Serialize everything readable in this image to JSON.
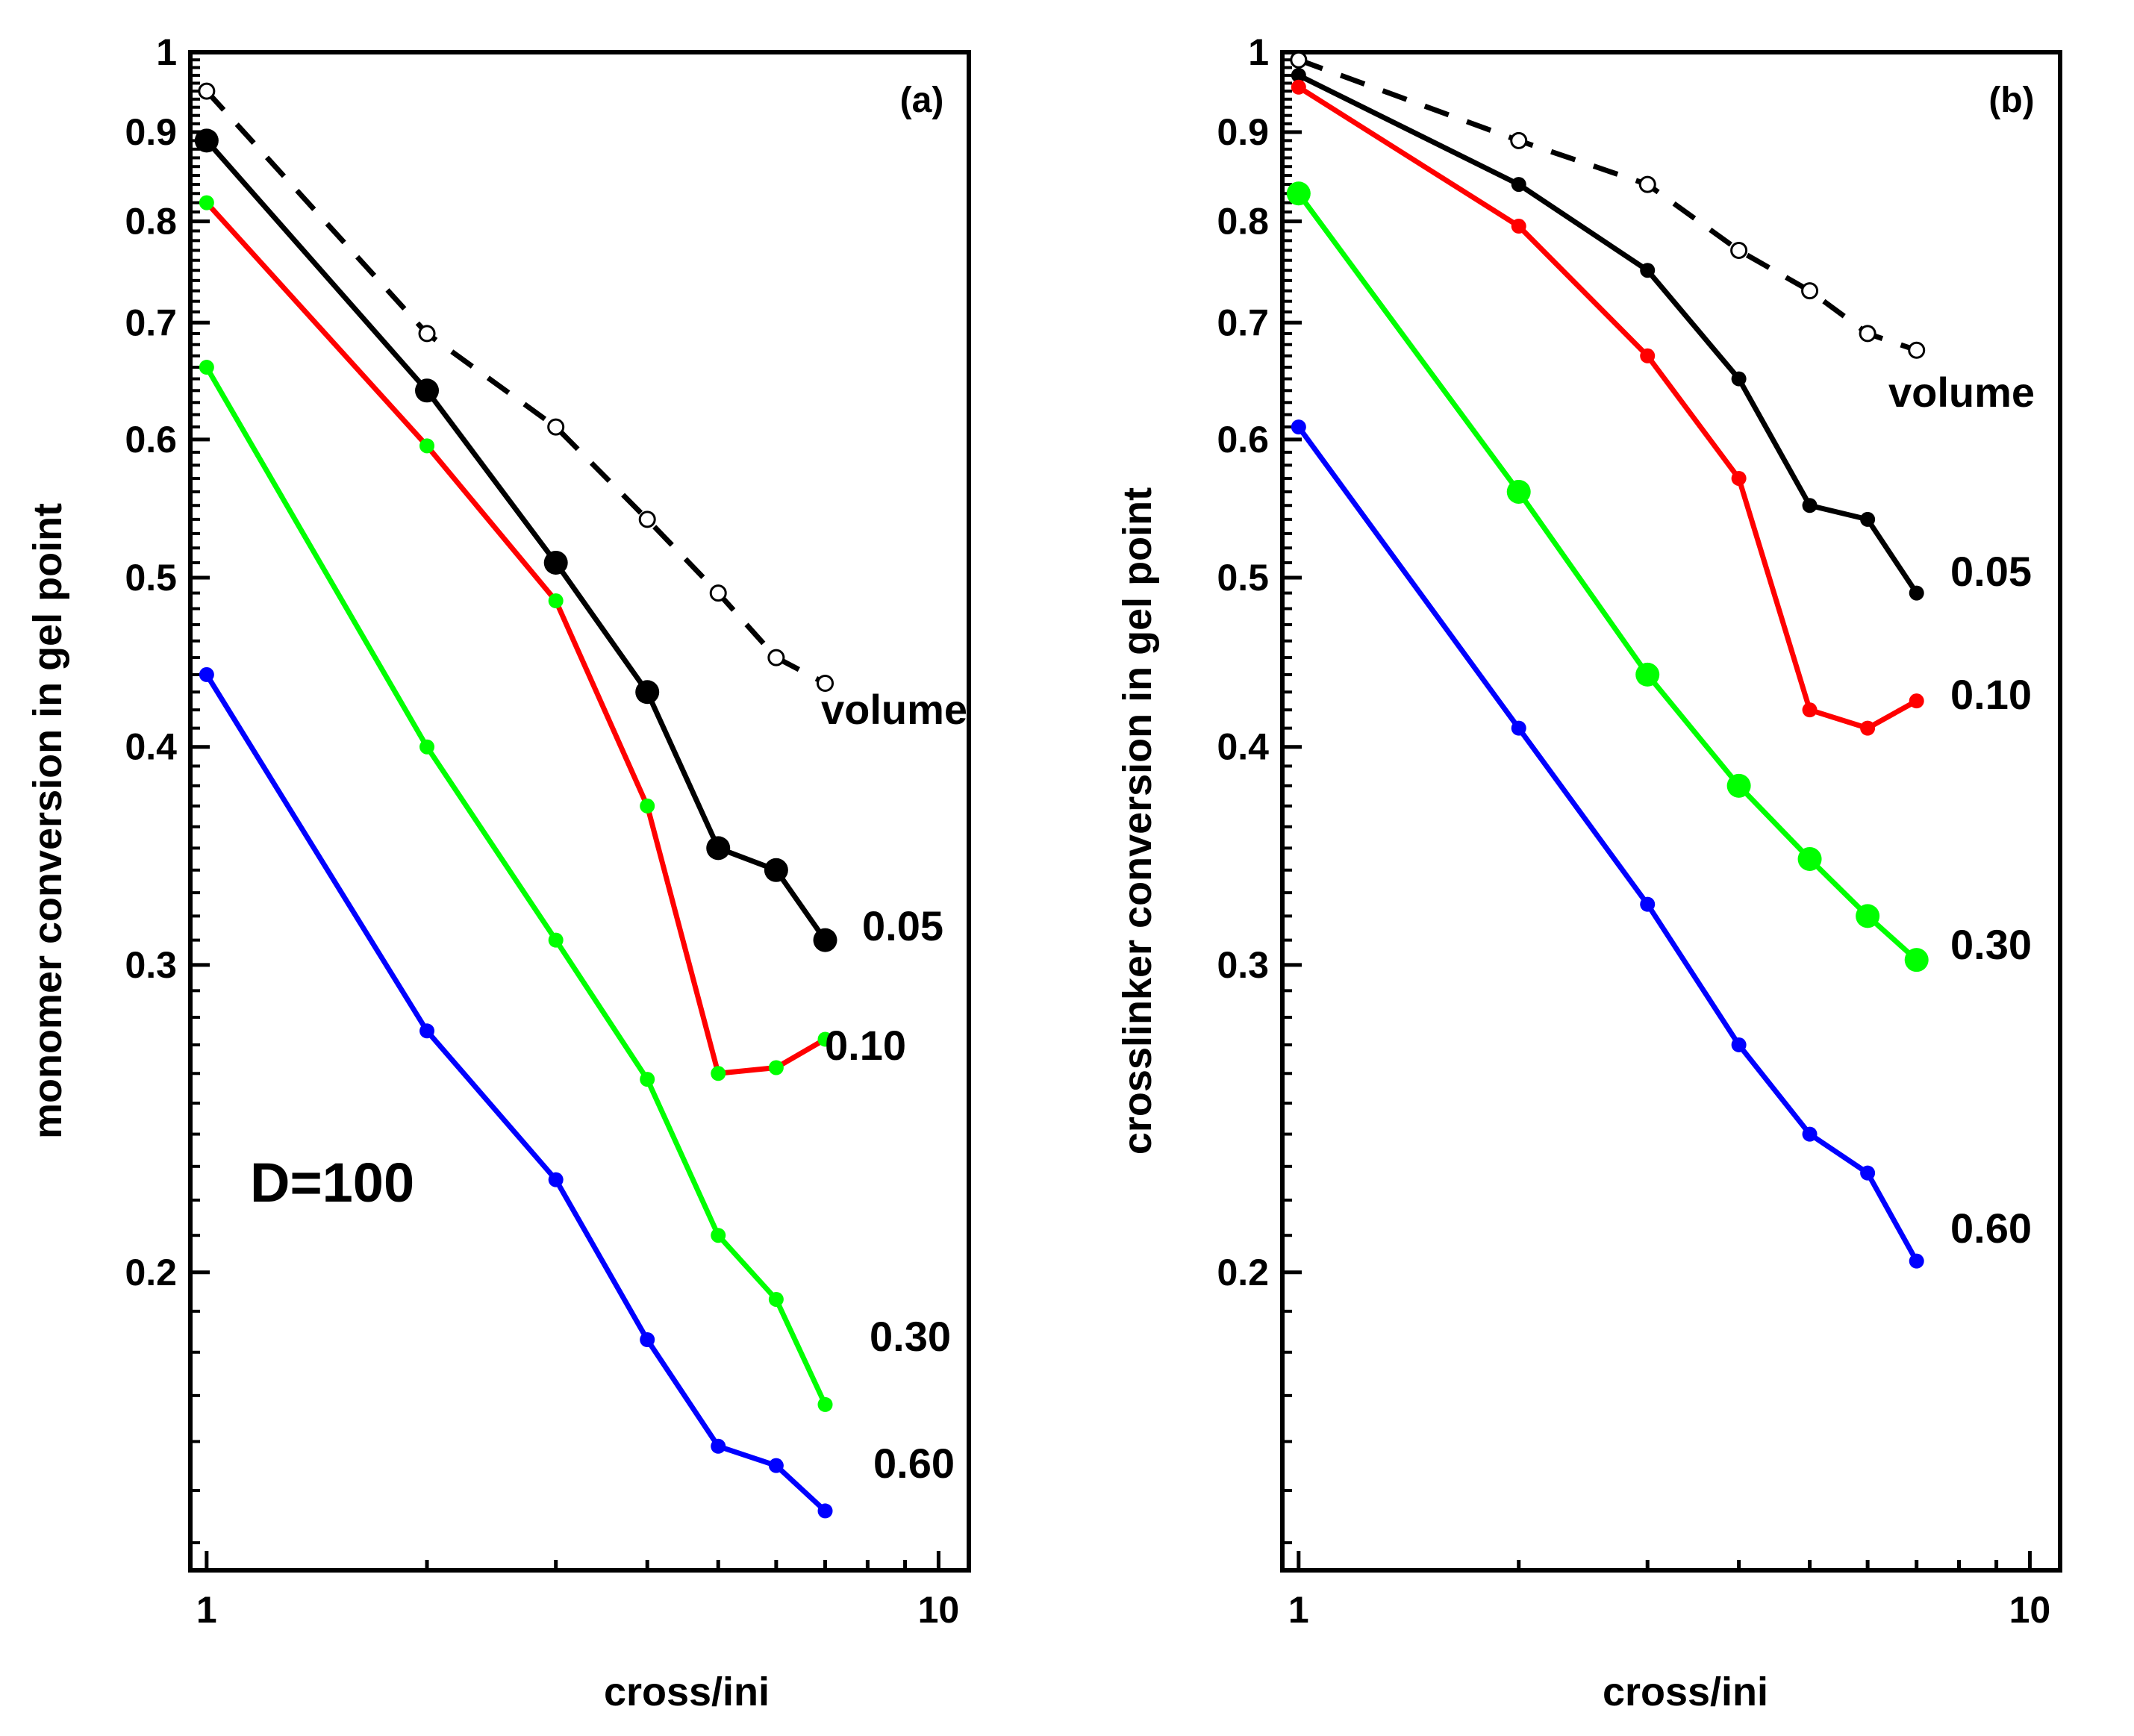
{
  "chart_data": [
    {
      "type": "line",
      "panel_label": "(a)",
      "xlabel": "cross/ini",
      "ylabel": "monomer conversion in gel point",
      "xscale": "log",
      "yscale": "log",
      "xlim": [
        0.95,
        11
      ],
      "ylim": [
        0.135,
        1.0
      ],
      "x_ticks": [
        "1",
        "10"
      ],
      "y_ticks": [
        "0.2",
        "0.3",
        "0.4",
        "0.5",
        "0.6",
        "0.7",
        "0.8",
        "0.9",
        "1"
      ],
      "annotation": "D=100",
      "x": [
        1,
        2,
        3,
        4,
        5,
        6,
        7
      ],
      "series": [
        {
          "name": "volume",
          "label": "volume",
          "color": "#000000",
          "style": "dashed",
          "marker": "open",
          "marker_size": "small",
          "values": [
            0.95,
            0.69,
            0.61,
            0.54,
            0.49,
            0.45,
            0.435
          ]
        },
        {
          "name": "0.05",
          "label": "0.05",
          "color": "#000000",
          "style": "solid",
          "marker": "filled",
          "marker_size": "large",
          "values": [
            0.89,
            0.64,
            0.51,
            0.43,
            0.35,
            0.34,
            0.31
          ]
        },
        {
          "name": "0.10",
          "label": "0.10",
          "color": "#ff0000",
          "style": "solid",
          "marker": "filled",
          "marker_color": "#00ff00",
          "marker_size": "small",
          "values": [
            0.82,
            0.595,
            0.485,
            0.37,
            0.26,
            0.262,
            0.272
          ]
        },
        {
          "name": "0.30",
          "label": "0.30",
          "color": "#00ff00",
          "style": "solid",
          "marker": "filled",
          "marker_size": "small",
          "values": [
            0.66,
            0.4,
            0.31,
            0.258,
            0.21,
            0.193,
            0.168
          ]
        },
        {
          "name": "0.60",
          "label": "0.60",
          "color": "#0000ff",
          "style": "solid",
          "marker": "filled",
          "marker_size": "small",
          "values": [
            0.44,
            0.275,
            0.226,
            0.183,
            0.159,
            0.155,
            0.146
          ]
        }
      ]
    },
    {
      "type": "line",
      "panel_label": "(b)",
      "xlabel": "cross/ini",
      "ylabel": "crosslinker conversion in gel point",
      "xscale": "log",
      "yscale": "log",
      "xlim": [
        0.95,
        11
      ],
      "ylim": [
        0.135,
        1.0
      ],
      "x_ticks": [
        "1",
        "10"
      ],
      "y_ticks": [
        "0.2",
        "0.3",
        "0.4",
        "0.5",
        "0.6",
        "0.7",
        "0.8",
        "0.9",
        "1"
      ],
      "x": [
        1,
        2,
        3,
        4,
        5,
        6,
        7
      ],
      "series": [
        {
          "name": "volume",
          "label": "volume",
          "color": "#000000",
          "style": "dashed",
          "marker": "open",
          "marker_size": "small",
          "values": [
            0.99,
            0.89,
            0.84,
            0.77,
            0.73,
            0.69,
            0.675
          ]
        },
        {
          "name": "0.05",
          "label": "0.05",
          "color": "#000000",
          "style": "solid",
          "marker": "filled",
          "marker_size": "small",
          "values": [
            0.97,
            0.84,
            0.75,
            0.65,
            0.55,
            0.54,
            0.49
          ]
        },
        {
          "name": "0.10",
          "label": "0.10",
          "color": "#ff0000",
          "style": "solid",
          "marker": "filled",
          "marker_size": "small",
          "values": [
            0.955,
            0.795,
            0.67,
            0.57,
            0.42,
            0.41,
            0.425
          ]
        },
        {
          "name": "0.30",
          "label": "0.30",
          "color": "#00ff00",
          "style": "solid",
          "marker": "filled",
          "marker_size": "large",
          "values": [
            0.83,
            0.56,
            0.44,
            0.38,
            0.345,
            0.32,
            0.302
          ]
        },
        {
          "name": "0.60",
          "label": "0.60",
          "color": "#0000ff",
          "style": "solid",
          "marker": "filled",
          "marker_size": "small",
          "values": [
            0.61,
            0.41,
            0.325,
            0.27,
            0.24,
            0.228,
            0.203
          ]
        }
      ]
    }
  ]
}
